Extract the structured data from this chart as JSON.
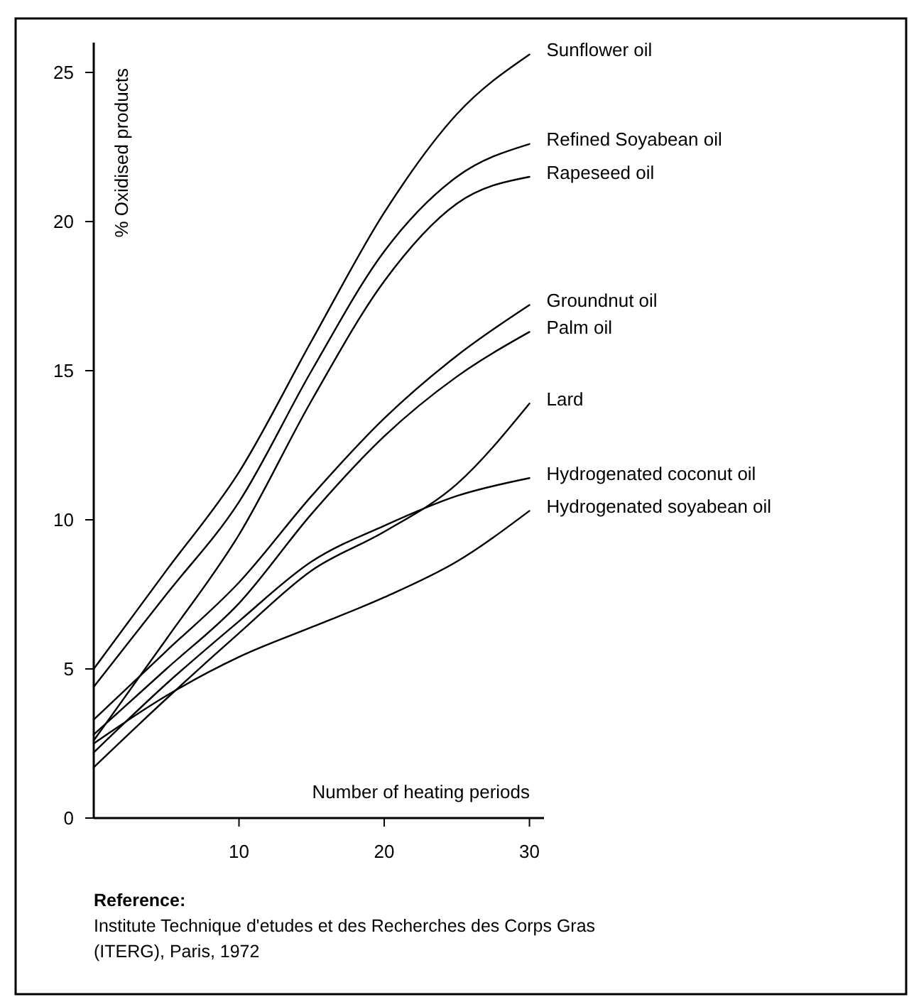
{
  "chart_data": {
    "type": "line",
    "xlabel": "Number of heating periods",
    "ylabel": "% Oxidised products",
    "x": [
      0,
      5,
      10,
      15,
      20,
      25,
      30
    ],
    "series": [
      {
        "name": "Sunflower oil",
        "color": "#000000",
        "values": [
          5.0,
          8.3,
          11.6,
          16.0,
          20.3,
          23.6,
          25.6
        ]
      },
      {
        "name": "Refined Soyabean oil",
        "color": "#000000",
        "values": [
          4.4,
          7.5,
          10.6,
          15.0,
          19.0,
          21.5,
          22.6
        ]
      },
      {
        "name": "Rapeseed oil",
        "color": "#000000",
        "values": [
          2.6,
          6.0,
          9.5,
          14.0,
          18.0,
          20.6,
          21.5
        ]
      },
      {
        "name": "Groundnut oil",
        "color": "#000000",
        "values": [
          3.3,
          5.6,
          7.9,
          10.8,
          13.4,
          15.5,
          17.2
        ]
      },
      {
        "name": "Palm oil",
        "color": "#000000",
        "values": [
          2.8,
          5.0,
          7.2,
          10.2,
          12.8,
          14.8,
          16.3
        ]
      },
      {
        "name": "Lard",
        "color": "#000000",
        "values": [
          1.7,
          4.0,
          6.2,
          8.3,
          9.6,
          11.2,
          13.9
        ]
      },
      {
        "name": "Hydrogenated coconut oil",
        "color": "#000000",
        "values": [
          2.2,
          4.5,
          6.6,
          8.6,
          9.8,
          10.8,
          11.4
        ]
      },
      {
        "name": "Hydrogenated soyabean oil",
        "color": "#000000",
        "values": [
          2.5,
          4.1,
          5.4,
          6.4,
          7.4,
          8.6,
          10.3
        ]
      }
    ],
    "xlim": [
      0,
      31
    ],
    "ylim": [
      0,
      26
    ],
    "xticks": [
      10,
      20,
      30
    ],
    "yticks": [
      0,
      5,
      10,
      15,
      20,
      25
    ],
    "grid": false,
    "marker": "none",
    "line_style": "solid",
    "annotations": [
      "Reference:",
      "Institute Technique d'etudes et des Recherches des Corps Gras (ITERG), Paris, 1972"
    ]
  }
}
